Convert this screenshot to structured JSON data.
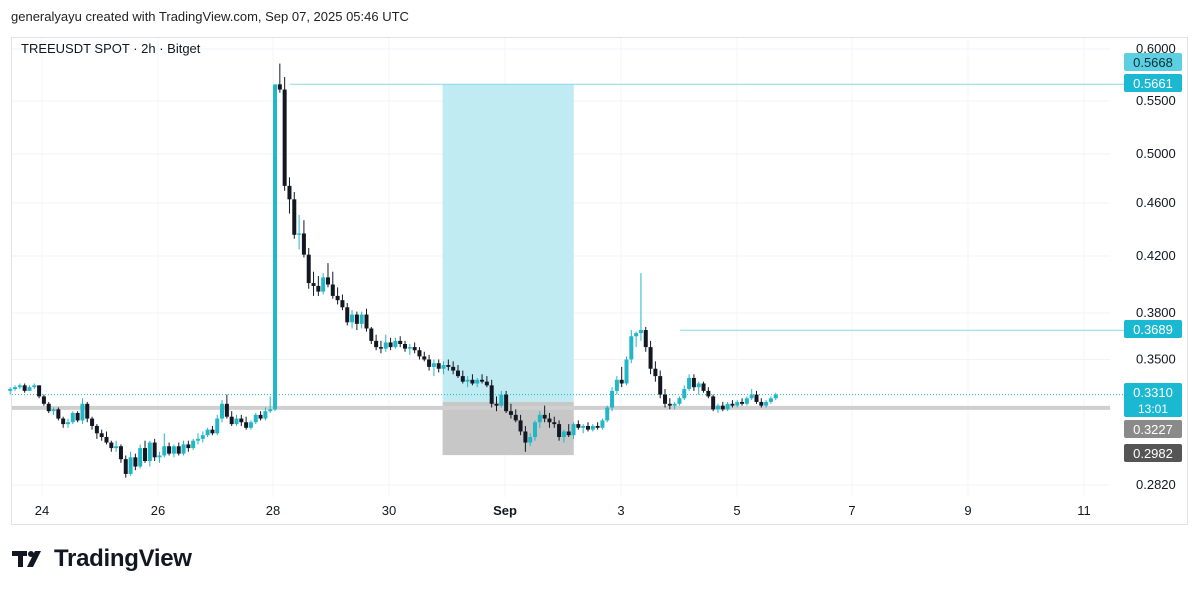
{
  "header": {
    "created_text": "generalyayu created with TradingView.com, Sep 07, 2025 05:46 UTC"
  },
  "symbol_label": "TREEUSDT SPOT · 2h · Bitget",
  "brand": {
    "name": "TradingView"
  },
  "colors": {
    "up": "#22b6c7",
    "down": "#131722",
    "target_zone": "#bdeaf2",
    "stop_zone": "#c4c4c4",
    "price_label_bg": "#1ab8d1",
    "sl_label_bg": "#8a8a8a",
    "sl2_label_bg": "#555555"
  },
  "chart_data": {
    "type": "candlestick",
    "title": "TREEUSDT SPOT · 2h · Bitget",
    "y_ticks": [
      "0.6000",
      "0.5500",
      "0.5000",
      "0.4600",
      "0.4200",
      "0.3800",
      "0.3500",
      "0.2820"
    ],
    "x_ticks": [
      "24",
      "26",
      "28",
      "30",
      "Sep",
      "3",
      "5",
      "7",
      "9",
      "11"
    ],
    "price_labels": [
      {
        "text": "0.5668",
        "value": 0.5668,
        "style": "light"
      },
      {
        "text": "0.5661",
        "value": 0.5661,
        "style": "accent"
      },
      {
        "text": "0.3689",
        "value": 0.3689,
        "style": "accent"
      },
      {
        "text": "0.3310",
        "sub": "13:01",
        "value": 0.331,
        "style": "accent"
      },
      {
        "text": "0.3227",
        "value": 0.3227,
        "style": "gray"
      },
      {
        "text": "0.2982",
        "value": 0.2982,
        "style": "dark"
      }
    ],
    "horizontal_lines": [
      0.5661,
      0.3689,
      0.331
    ],
    "support_level": 0.3227,
    "position_tool": {
      "entry": 0.3227,
      "target": 0.5661,
      "stop": 0.2982,
      "x_start": 7.0,
      "x_end": 9.2
    },
    "series": [
      {
        "name": "TREEUSDT",
        "x_start": -0.55,
        "x_step": 0.0833,
        "ohlc": [
          [
            0.333,
            0.335,
            0.331,
            0.334
          ],
          [
            0.334,
            0.336,
            0.333,
            0.335
          ],
          [
            0.335,
            0.337,
            0.334,
            0.336
          ],
          [
            0.336,
            0.337,
            0.332,
            0.333
          ],
          [
            0.333,
            0.336,
            0.333,
            0.335
          ],
          [
            0.335,
            0.337,
            0.334,
            0.336
          ],
          [
            0.336,
            0.336,
            0.329,
            0.33
          ],
          [
            0.33,
            0.331,
            0.325,
            0.326
          ],
          [
            0.326,
            0.327,
            0.321,
            0.322
          ],
          [
            0.322,
            0.324,
            0.32,
            0.323
          ],
          [
            0.323,
            0.324,
            0.317,
            0.318
          ],
          [
            0.318,
            0.319,
            0.313,
            0.315
          ],
          [
            0.315,
            0.318,
            0.313,
            0.316
          ],
          [
            0.316,
            0.322,
            0.315,
            0.321
          ],
          [
            0.321,
            0.322,
            0.316,
            0.317
          ],
          [
            0.317,
            0.329,
            0.315,
            0.326
          ],
          [
            0.326,
            0.327,
            0.316,
            0.318
          ],
          [
            0.318,
            0.319,
            0.312,
            0.314
          ],
          [
            0.314,
            0.315,
            0.307,
            0.31
          ],
          [
            0.31,
            0.312,
            0.306,
            0.308
          ],
          [
            0.308,
            0.311,
            0.304,
            0.305
          ],
          [
            0.305,
            0.306,
            0.3,
            0.302
          ],
          [
            0.302,
            0.306,
            0.3,
            0.303
          ],
          [
            0.303,
            0.304,
            0.294,
            0.296
          ],
          [
            0.296,
            0.298,
            0.286,
            0.288
          ],
          [
            0.288,
            0.3,
            0.287,
            0.297
          ],
          [
            0.297,
            0.299,
            0.29,
            0.292
          ],
          [
            0.292,
            0.304,
            0.291,
            0.302
          ],
          [
            0.302,
            0.306,
            0.294,
            0.295
          ],
          [
            0.295,
            0.306,
            0.292,
            0.305
          ],
          [
            0.305,
            0.307,
            0.295,
            0.297
          ],
          [
            0.297,
            0.3,
            0.294,
            0.298
          ],
          [
            0.298,
            0.31,
            0.297,
            0.303
          ],
          [
            0.303,
            0.305,
            0.298,
            0.299
          ],
          [
            0.299,
            0.304,
            0.297,
            0.303
          ],
          [
            0.303,
            0.305,
            0.298,
            0.299
          ],
          [
            0.299,
            0.306,
            0.298,
            0.304
          ],
          [
            0.304,
            0.306,
            0.3,
            0.302
          ],
          [
            0.302,
            0.307,
            0.301,
            0.306
          ],
          [
            0.306,
            0.31,
            0.304,
            0.307
          ],
          [
            0.307,
            0.311,
            0.305,
            0.309
          ],
          [
            0.309,
            0.313,
            0.308,
            0.312
          ],
          [
            0.312,
            0.314,
            0.309,
            0.31
          ],
          [
            0.31,
            0.32,
            0.309,
            0.318
          ],
          [
            0.318,
            0.328,
            0.316,
            0.326
          ],
          [
            0.326,
            0.331,
            0.318,
            0.319
          ],
          [
            0.319,
            0.322,
            0.314,
            0.315
          ],
          [
            0.315,
            0.32,
            0.314,
            0.318
          ],
          [
            0.318,
            0.32,
            0.314,
            0.316
          ],
          [
            0.316,
            0.319,
            0.312,
            0.313
          ],
          [
            0.313,
            0.317,
            0.312,
            0.316
          ],
          [
            0.316,
            0.321,
            0.315,
            0.32
          ],
          [
            0.32,
            0.322,
            0.317,
            0.318
          ],
          [
            0.318,
            0.324,
            0.317,
            0.322
          ],
          [
            0.322,
            0.33,
            0.321,
            0.323
          ],
          [
            0.323,
            0.566,
            0.322,
            0.566
          ],
          [
            0.566,
            0.586,
            0.558,
            0.561
          ],
          [
            0.561,
            0.573,
            0.47,
            0.474
          ],
          [
            0.474,
            0.481,
            0.452,
            0.463
          ],
          [
            0.463,
            0.469,
            0.433,
            0.436
          ],
          [
            0.436,
            0.451,
            0.425,
            0.437
          ],
          [
            0.437,
            0.447,
            0.419,
            0.421
          ],
          [
            0.421,
            0.426,
            0.397,
            0.401
          ],
          [
            0.401,
            0.409,
            0.392,
            0.399
          ],
          [
            0.399,
            0.406,
            0.392,
            0.395
          ],
          [
            0.395,
            0.408,
            0.393,
            0.405
          ],
          [
            0.405,
            0.415,
            0.398,
            0.4
          ],
          [
            0.4,
            0.409,
            0.39,
            0.392
          ],
          [
            0.392,
            0.398,
            0.386,
            0.389
          ],
          [
            0.389,
            0.393,
            0.382,
            0.384
          ],
          [
            0.384,
            0.387,
            0.372,
            0.374
          ],
          [
            0.374,
            0.382,
            0.37,
            0.379
          ],
          [
            0.379,
            0.381,
            0.369,
            0.373
          ],
          [
            0.373,
            0.381,
            0.37,
            0.379
          ],
          [
            0.379,
            0.383,
            0.368,
            0.37
          ],
          [
            0.37,
            0.371,
            0.36,
            0.362
          ],
          [
            0.362,
            0.366,
            0.356,
            0.358
          ],
          [
            0.358,
            0.362,
            0.354,
            0.357
          ],
          [
            0.357,
            0.366,
            0.355,
            0.361
          ],
          [
            0.361,
            0.364,
            0.356,
            0.358
          ],
          [
            0.358,
            0.364,
            0.357,
            0.362
          ],
          [
            0.362,
            0.365,
            0.358,
            0.36
          ],
          [
            0.36,
            0.362,
            0.355,
            0.357
          ],
          [
            0.357,
            0.36,
            0.353,
            0.358
          ],
          [
            0.358,
            0.361,
            0.354,
            0.356
          ],
          [
            0.356,
            0.358,
            0.35,
            0.352
          ],
          [
            0.352,
            0.355,
            0.349,
            0.35
          ],
          [
            0.35,
            0.353,
            0.344,
            0.346
          ],
          [
            0.346,
            0.35,
            0.341,
            0.348
          ],
          [
            0.348,
            0.35,
            0.343,
            0.345
          ],
          [
            0.345,
            0.349,
            0.342,
            0.347
          ],
          [
            0.347,
            0.35,
            0.344,
            0.346
          ],
          [
            0.346,
            0.349,
            0.342,
            0.344
          ],
          [
            0.344,
            0.347,
            0.34,
            0.341
          ],
          [
            0.341,
            0.344,
            0.337,
            0.338
          ],
          [
            0.338,
            0.341,
            0.335,
            0.339
          ],
          [
            0.339,
            0.342,
            0.336,
            0.337
          ],
          [
            0.337,
            0.34,
            0.335,
            0.339
          ],
          [
            0.339,
            0.342,
            0.337,
            0.338
          ],
          [
            0.338,
            0.341,
            0.335,
            0.336
          ],
          [
            0.336,
            0.339,
            0.324,
            0.326
          ],
          [
            0.326,
            0.33,
            0.322,
            0.325
          ],
          [
            0.325,
            0.333,
            0.324,
            0.331
          ],
          [
            0.331,
            0.333,
            0.321,
            0.322
          ],
          [
            0.322,
            0.326,
            0.318,
            0.32
          ],
          [
            0.32,
            0.323,
            0.316,
            0.317
          ],
          [
            0.317,
            0.32,
            0.309,
            0.311
          ],
          [
            0.311,
            0.314,
            0.3,
            0.305
          ],
          [
            0.305,
            0.31,
            0.303,
            0.308
          ],
          [
            0.308,
            0.317,
            0.306,
            0.316
          ],
          [
            0.316,
            0.322,
            0.313,
            0.32
          ],
          [
            0.32,
            0.325,
            0.316,
            0.318
          ],
          [
            0.318,
            0.321,
            0.313,
            0.316
          ],
          [
            0.316,
            0.319,
            0.313,
            0.315
          ],
          [
            0.315,
            0.317,
            0.306,
            0.308
          ],
          [
            0.308,
            0.312,
            0.305,
            0.311
          ],
          [
            0.311,
            0.315,
            0.308,
            0.309
          ],
          [
            0.309,
            0.316,
            0.307,
            0.315
          ],
          [
            0.315,
            0.317,
            0.312,
            0.313
          ],
          [
            0.313,
            0.315,
            0.31,
            0.314
          ],
          [
            0.314,
            0.316,
            0.311,
            0.312
          ],
          [
            0.312,
            0.315,
            0.311,
            0.314
          ],
          [
            0.314,
            0.316,
            0.312,
            0.313
          ],
          [
            0.313,
            0.318,
            0.312,
            0.317
          ],
          [
            0.317,
            0.325,
            0.316,
            0.324
          ],
          [
            0.324,
            0.335,
            0.322,
            0.333
          ],
          [
            0.333,
            0.341,
            0.331,
            0.339
          ],
          [
            0.339,
            0.346,
            0.335,
            0.337
          ],
          [
            0.337,
            0.352,
            0.336,
            0.35
          ],
          [
            0.35,
            0.369,
            0.348,
            0.365
          ],
          [
            0.365,
            0.368,
            0.358,
            0.367
          ],
          [
            0.367,
            0.408,
            0.362,
            0.369
          ],
          [
            0.369,
            0.371,
            0.355,
            0.358
          ],
          [
            0.358,
            0.362,
            0.342,
            0.345
          ],
          [
            0.345,
            0.349,
            0.338,
            0.341
          ],
          [
            0.341,
            0.344,
            0.329,
            0.331
          ],
          [
            0.331,
            0.334,
            0.324,
            0.326
          ],
          [
            0.326,
            0.329,
            0.323,
            0.325
          ],
          [
            0.325,
            0.327,
            0.323,
            0.326
          ],
          [
            0.326,
            0.33,
            0.325,
            0.329
          ],
          [
            0.329,
            0.336,
            0.328,
            0.334
          ],
          [
            0.334,
            0.342,
            0.333,
            0.34
          ],
          [
            0.34,
            0.342,
            0.333,
            0.335
          ],
          [
            0.335,
            0.338,
            0.331,
            0.337
          ],
          [
            0.337,
            0.338,
            0.332,
            0.333
          ],
          [
            0.333,
            0.335,
            0.329,
            0.33
          ],
          [
            0.33,
            0.331,
            0.322,
            0.323
          ],
          [
            0.323,
            0.326,
            0.321,
            0.325
          ],
          [
            0.325,
            0.327,
            0.322,
            0.323
          ],
          [
            0.323,
            0.327,
            0.322,
            0.326
          ],
          [
            0.326,
            0.328,
            0.324,
            0.325
          ],
          [
            0.325,
            0.328,
            0.324,
            0.327
          ],
          [
            0.327,
            0.329,
            0.325,
            0.326
          ],
          [
            0.326,
            0.33,
            0.325,
            0.329
          ],
          [
            0.329,
            0.334,
            0.328,
            0.331
          ],
          [
            0.331,
            0.333,
            0.326,
            0.327
          ],
          [
            0.327,
            0.329,
            0.324,
            0.325
          ],
          [
            0.325,
            0.328,
            0.324,
            0.327
          ],
          [
            0.327,
            0.33,
            0.326,
            0.329
          ],
          [
            0.329,
            0.332,
            0.328,
            0.331
          ]
        ]
      }
    ]
  }
}
